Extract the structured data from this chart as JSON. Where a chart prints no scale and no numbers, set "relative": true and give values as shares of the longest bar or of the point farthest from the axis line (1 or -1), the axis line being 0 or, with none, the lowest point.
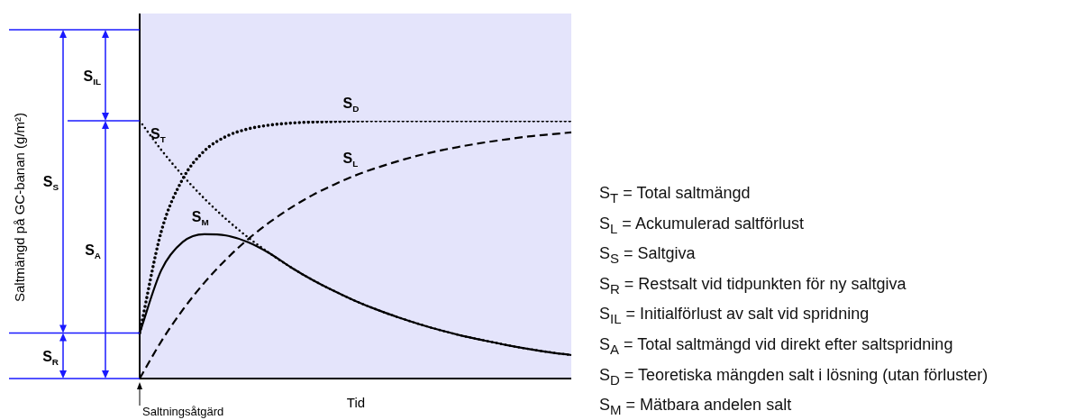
{
  "chart_data": {
    "type": "line",
    "relative": true,
    "xlabel": "Tid",
    "marker": "none",
    "legend": false,
    "categories": [
      null,
      null,
      null,
      null,
      null,
      null,
      null,
      null,
      null,
      null,
      null,
      null,
      null,
      null,
      null,
      null,
      null,
      null,
      null,
      null,
      null
    ],
    "series": [
      {
        "name": "S$_{T}$",
        "color": "#000000",
        "line_style": "dotted",
        "values": [
          1,
          0.887,
          0.787,
          0.698,
          0.619,
          0.549,
          0.487,
          0.432,
          0.383,
          0.34,
          0.301,
          0.267,
          0.237,
          0.21,
          0.186,
          0.165,
          0.147,
          0.13,
          0.115,
          0.102,
          0.091
        ]
      },
      {
        "name": "S$_{D}$",
        "color": "#000000",
        "line_style": "dotted",
        "values": [
          0.177,
          0.57,
          0.775,
          0.883,
          0.939,
          0.968,
          0.983,
          0.991,
          0.995,
          0.997,
          0.999,
          1,
          1,
          1,
          1,
          1,
          1,
          1,
          1,
          1,
          1
        ]
      },
      {
        "name": "S$_{L}$",
        "color": "#000000",
        "line_style": "dashed",
        "values": [
          0,
          0.144,
          0.267,
          0.372,
          0.462,
          0.539,
          0.605,
          0.662,
          0.711,
          0.752,
          0.788,
          0.818,
          0.844,
          0.867,
          0.886,
          0.902,
          0.916,
          0.928,
          0.939,
          0.947,
          0.955
        ]
      },
      {
        "name": "S$_{M}$",
        "color": "#000000",
        "line_style": "solid",
        "values": [
          0.177,
          0.42,
          0.53,
          0.56,
          0.555,
          0.53,
          0.487,
          0.432,
          0.383,
          0.34,
          0.301,
          0.267,
          0.237,
          0.21,
          0.186,
          0.165,
          0.147,
          0.13,
          0.115,
          0.102,
          0.091
        ]
      }
    ],
    "annotations": [
      "Saltningsåtgärd",
      "S$_{S}$",
      "S$_{A}$",
      "S$_{R}$",
      "S$_{IL}$",
      "S$_{T}$ = Total saltmängd",
      "S$_{L}$ = Ackumulerad saltförlust",
      "S$_{S}$ = Saltgiva",
      "S$_{R}$ = Restsalt vid tidpunkten för ny saltgiva",
      "S$_{IL}$ = Initialförlust av salt vid spridning",
      "S$_{A}$ = Total saltmängd vid direkt efter saltspridning",
      "S$_{D}$ = Teoretiska mängden salt i lösning (utan förluster)",
      "S$_{M}$ = Mätbara andelen salt",
      "Saltmängd på GC-banan (g/m²)"
    ]
  }
}
